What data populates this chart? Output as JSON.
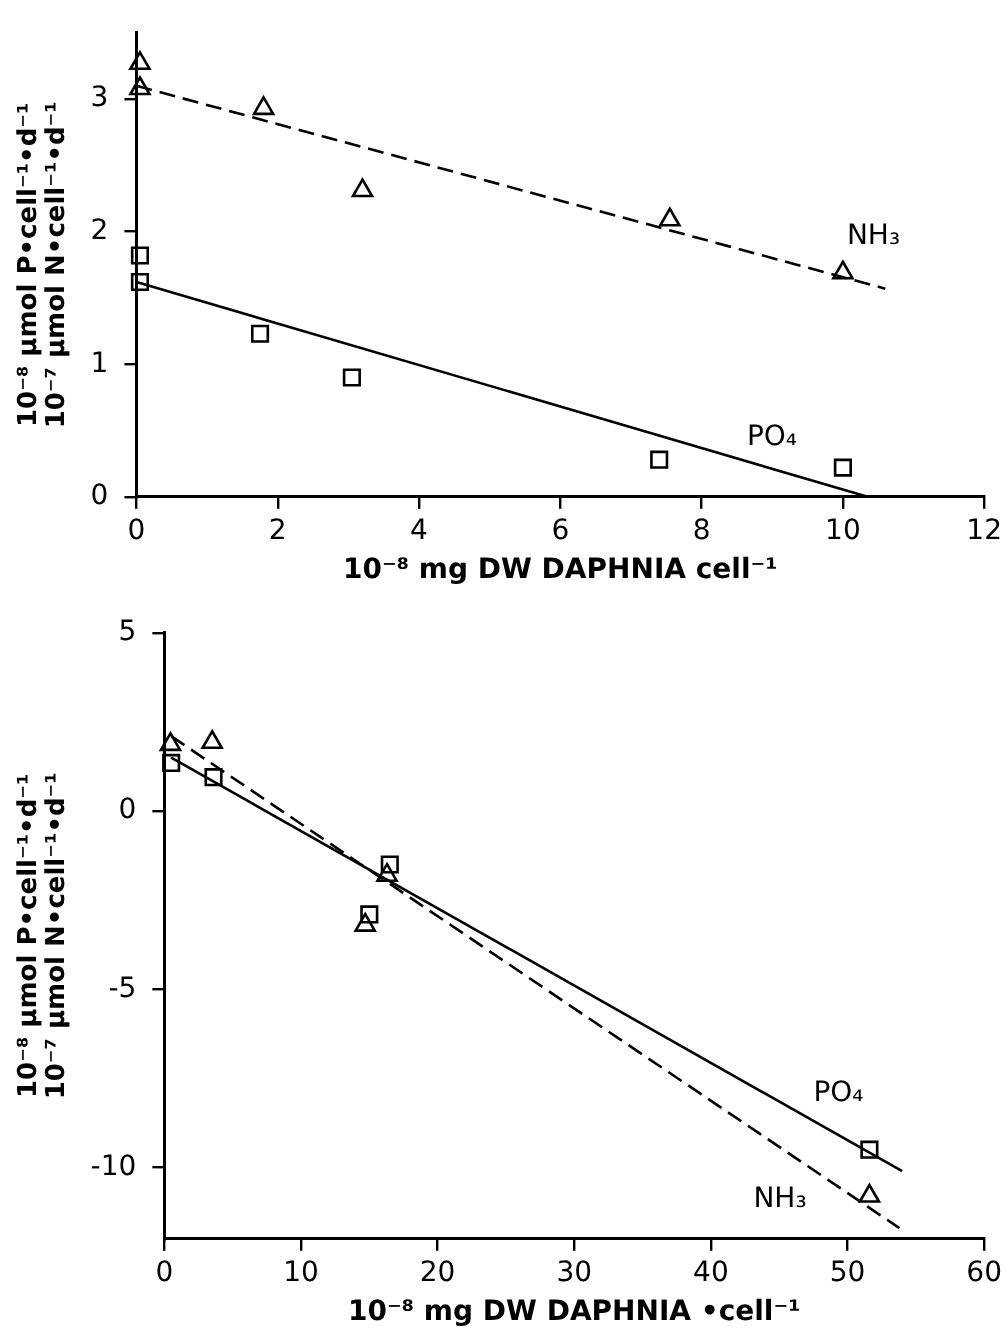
{
  "chart_data": [
    {
      "type": "scatter",
      "xlabel": "10⁻⁸ mg DW DAPHNIA cell⁻¹",
      "ylabel": "10⁻⁸ µmol P•cell⁻¹•d⁻¹\n10⁻⁷ µmol N•cell⁻¹•d⁻¹",
      "xlim": [
        0,
        12
      ],
      "ylim": [
        0,
        3.5
      ],
      "xticks": [
        0,
        2,
        4,
        6,
        8,
        10,
        12
      ],
      "yticks": [
        0,
        1,
        2,
        3
      ],
      "grid": false,
      "legend": false,
      "series": [
        {
          "name": "NH₃",
          "type": "scatter",
          "marker": "triangle",
          "color": "#000000",
          "x": [
            0.05,
            0.05,
            1.8,
            3.2,
            7.55,
            10
          ],
          "values": [
            3.27,
            3.08,
            2.93,
            2.31,
            2.09,
            1.69
          ]
        },
        {
          "type": "line",
          "line_style": "dashed",
          "marker": "none",
          "color": "#000000",
          "x": [
            0,
            10.6
          ],
          "values": [
            3.1,
            1.57
          ]
        },
        {
          "name": "PO₄",
          "type": "scatter",
          "marker": "square",
          "color": "#000000",
          "x": [
            0.05,
            0.05,
            1.75,
            3.05,
            7.4,
            10
          ],
          "values": [
            1.82,
            1.62,
            1.23,
            0.9,
            0.28,
            0.22
          ]
        },
        {
          "type": "line",
          "line_style": "solid",
          "marker": "none",
          "color": "#000000",
          "x": [
            0,
            10.35
          ],
          "values": [
            1.62,
            0
          ]
        }
      ]
    },
    {
      "type": "scatter",
      "xlabel": "10⁻⁸ mg DW DAPHNIA •cell⁻¹",
      "ylabel": "10⁻⁸ µmol P•cell⁻¹•d⁻¹\n10⁻⁷ µmol N•cell⁻¹•d⁻¹",
      "xlim": [
        0,
        60
      ],
      "ylim": [
        -12,
        5
      ],
      "xticks": [
        0,
        10,
        20,
        30,
        40,
        50,
        60
      ],
      "yticks": [
        -10,
        -5,
        0,
        5
      ],
      "grid": false,
      "legend": false,
      "series": [
        {
          "name": "PO₄",
          "type": "scatter",
          "marker": "square",
          "color": "#000000",
          "x": [
            0.5,
            3.6,
            15,
            16.5,
            51.6
          ],
          "values": [
            1.35,
            0.95,
            -2.9,
            -1.5,
            -9.5
          ]
        },
        {
          "type": "line",
          "line_style": "solid",
          "marker": "none",
          "color": "#000000",
          "x": [
            0.5,
            54
          ],
          "values": [
            1.5,
            -10.1
          ]
        },
        {
          "name": "NH₃",
          "type": "scatter",
          "marker": "triangle",
          "color": "#000000",
          "x": [
            0.45,
            3.5,
            14.7,
            16.3,
            51.6
          ],
          "values": [
            1.87,
            1.93,
            -3.2,
            -1.8,
            -10.8
          ]
        },
        {
          "type": "line",
          "line_style": "dashed",
          "marker": "none",
          "color": "#000000",
          "x": [
            0.5,
            53.8
          ],
          "values": [
            2.1,
            -11.7
          ]
        }
      ]
    }
  ]
}
